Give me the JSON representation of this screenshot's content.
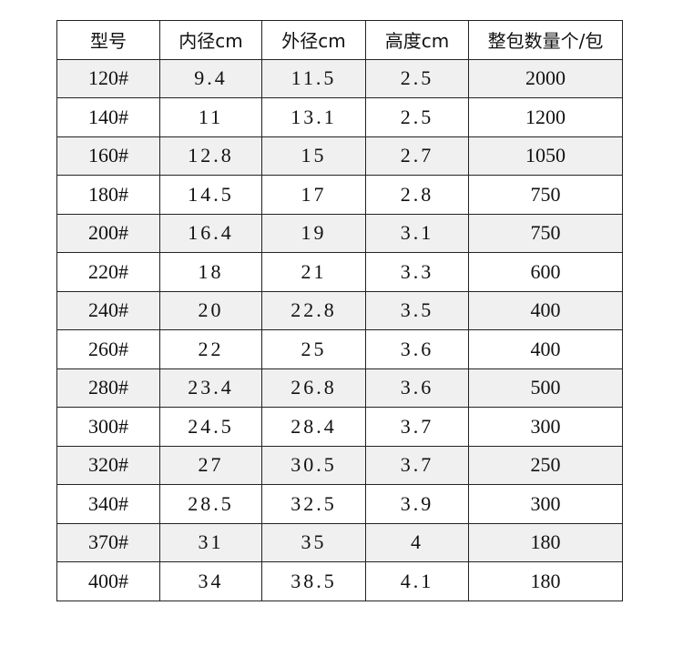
{
  "table": {
    "columns": [
      "型号",
      "内径cm",
      "外径cm",
      "高度cm",
      "整包数量个/包"
    ],
    "rows": [
      [
        "120#",
        "9.4",
        "11.5",
        "2.5",
        "2000"
      ],
      [
        "140#",
        "11",
        "13.1",
        "2.5",
        "1200"
      ],
      [
        "160#",
        "12.8",
        "15",
        "2.7",
        "1050"
      ],
      [
        "180#",
        "14.5",
        "17",
        "2.8",
        "750"
      ],
      [
        "200#",
        "16.4",
        "19",
        "3.1",
        "750"
      ],
      [
        "220#",
        "18",
        "21",
        "3.3",
        "600"
      ],
      [
        "240#",
        "20",
        "22.8",
        "3.5",
        "400"
      ],
      [
        "260#",
        "22",
        "25",
        "3.6",
        "400"
      ],
      [
        "280#",
        "23.4",
        "26.8",
        "3.6",
        "500"
      ],
      [
        "300#",
        "24.5",
        "28.4",
        "3.7",
        "300"
      ],
      [
        "320#",
        "27",
        "30.5",
        "3.7",
        "250"
      ],
      [
        "340#",
        "28.5",
        "32.5",
        "3.9",
        "300"
      ],
      [
        "370#",
        "31",
        "35",
        "4",
        "180"
      ],
      [
        "400#",
        "34",
        "38.5",
        "4.1",
        "180"
      ]
    ]
  }
}
